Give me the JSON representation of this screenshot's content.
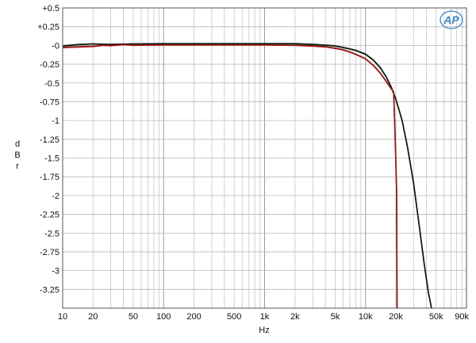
{
  "chart_data": {
    "type": "line",
    "title": "",
    "xlabel": "Hz",
    "ylabel": "dBr",
    "x_scale": "log",
    "xlim": [
      10,
      100000
    ],
    "ylim": [
      -3.5,
      0.5
    ],
    "grid": true,
    "logo": "AP",
    "x_ticks": [
      {
        "value": 10,
        "label": "10"
      },
      {
        "value": 20,
        "label": "20"
      },
      {
        "value": 50,
        "label": "50"
      },
      {
        "value": 100,
        "label": "100"
      },
      {
        "value": 200,
        "label": "200"
      },
      {
        "value": 500,
        "label": "500"
      },
      {
        "value": 1000,
        "label": "1k"
      },
      {
        "value": 2000,
        "label": "2k"
      },
      {
        "value": 5000,
        "label": "5k"
      },
      {
        "value": 10000,
        "label": "10k"
      },
      {
        "value": 20000,
        "label": "20k"
      },
      {
        "value": 50000,
        "label": "50k"
      },
      {
        "value": 90000,
        "label": "90k"
      }
    ],
    "y_ticks": [
      {
        "value": 0.5,
        "label": "+0.5"
      },
      {
        "value": 0.25,
        "label": "+0.25"
      },
      {
        "value": 0,
        "label": "-0"
      },
      {
        "value": -0.25,
        "label": "-0.25"
      },
      {
        "value": -0.5,
        "label": "-0.5"
      },
      {
        "value": -0.75,
        "label": "-0.75"
      },
      {
        "value": -1,
        "label": "-1"
      },
      {
        "value": -1.25,
        "label": "-1.25"
      },
      {
        "value": -1.5,
        "label": "-1.5"
      },
      {
        "value": -1.75,
        "label": "-1.75"
      },
      {
        "value": -2,
        "label": "-2"
      },
      {
        "value": -2.25,
        "label": "-2.25"
      },
      {
        "value": -2.5,
        "label": "-2.5"
      },
      {
        "value": -2.75,
        "label": "-2.75"
      },
      {
        "value": -3,
        "label": "-3"
      },
      {
        "value": -3.25,
        "label": "-3.25"
      }
    ],
    "series": [
      {
        "color": "#1a8a2a",
        "points": [
          [
            10,
            -0.01
          ],
          [
            15,
            0.01
          ],
          [
            20,
            0.02
          ],
          [
            30,
            0.01
          ],
          [
            50,
            0.02
          ],
          [
            100,
            0.02
          ],
          [
            200,
            0.02
          ],
          [
            500,
            0.02
          ],
          [
            1000,
            0.02
          ],
          [
            2000,
            0.02
          ],
          [
            3000,
            0.01
          ],
          [
            4000,
            0.0
          ],
          [
            5000,
            -0.01
          ],
          [
            6000,
            -0.03
          ],
          [
            7000,
            -0.05
          ],
          [
            8000,
            -0.07
          ],
          [
            10000,
            -0.12
          ],
          [
            12000,
            -0.2
          ],
          [
            14000,
            -0.3
          ],
          [
            16000,
            -0.42
          ],
          [
            18000,
            -0.56
          ],
          [
            20000,
            -0.72
          ],
          [
            23000,
            -1.0
          ],
          [
            26000,
            -1.35
          ],
          [
            30000,
            -1.85
          ],
          [
            34000,
            -2.4
          ],
          [
            38000,
            -2.9
          ],
          [
            42000,
            -3.3
          ],
          [
            45000,
            -3.5
          ]
        ]
      },
      {
        "color": "#111111",
        "points": [
          [
            10,
            -0.005
          ],
          [
            15,
            0.015
          ],
          [
            20,
            0.02
          ],
          [
            30,
            0.015
          ],
          [
            50,
            0.02
          ],
          [
            100,
            0.025
          ],
          [
            200,
            0.025
          ],
          [
            500,
            0.025
          ],
          [
            1000,
            0.025
          ],
          [
            2000,
            0.025
          ],
          [
            3000,
            0.015
          ],
          [
            4000,
            0.005
          ],
          [
            5000,
            -0.005
          ],
          [
            6000,
            -0.025
          ],
          [
            7000,
            -0.045
          ],
          [
            8000,
            -0.065
          ],
          [
            10000,
            -0.115
          ],
          [
            12000,
            -0.195
          ],
          [
            14000,
            -0.295
          ],
          [
            16000,
            -0.415
          ],
          [
            18000,
            -0.555
          ],
          [
            20000,
            -0.715
          ],
          [
            23000,
            -0.995
          ],
          [
            26000,
            -1.345
          ],
          [
            30000,
            -1.845
          ],
          [
            34000,
            -2.395
          ],
          [
            38000,
            -2.895
          ],
          [
            42000,
            -3.295
          ],
          [
            45100,
            -3.5
          ]
        ]
      },
      {
        "color": "#e0102a",
        "points": [
          [
            10,
            -0.03
          ],
          [
            15,
            -0.02
          ],
          [
            20,
            -0.015
          ],
          [
            25,
            0.0
          ],
          [
            30,
            -0.005
          ],
          [
            40,
            0.01
          ],
          [
            50,
            0.0
          ],
          [
            100,
            0.005
          ],
          [
            200,
            0.005
          ],
          [
            500,
            0.005
          ],
          [
            1000,
            0.005
          ],
          [
            2000,
            0.0
          ],
          [
            3000,
            -0.01
          ],
          [
            4000,
            -0.02
          ],
          [
            5000,
            -0.04
          ],
          [
            6000,
            -0.06
          ],
          [
            7000,
            -0.09
          ],
          [
            8000,
            -0.12
          ],
          [
            10000,
            -0.18
          ],
          [
            12000,
            -0.27
          ],
          [
            14000,
            -0.37
          ],
          [
            16000,
            -0.48
          ],
          [
            18000,
            -0.58
          ],
          [
            19000,
            -0.62
          ],
          [
            19600,
            -1.2
          ],
          [
            20300,
            -1.95
          ],
          [
            20500,
            -3.5
          ]
        ]
      },
      {
        "color": "#8a1a1a",
        "points": [
          [
            10,
            -0.025
          ],
          [
            15,
            -0.015
          ],
          [
            20,
            -0.01
          ],
          [
            25,
            0.005
          ],
          [
            30,
            0.0
          ],
          [
            40,
            0.012
          ],
          [
            50,
            0.004
          ],
          [
            100,
            0.008
          ],
          [
            200,
            0.008
          ],
          [
            500,
            0.008
          ],
          [
            1000,
            0.008
          ],
          [
            2000,
            0.004
          ],
          [
            3000,
            -0.006
          ],
          [
            4000,
            -0.016
          ],
          [
            5000,
            -0.036
          ],
          [
            6000,
            -0.056
          ],
          [
            7000,
            -0.086
          ],
          [
            8000,
            -0.116
          ],
          [
            10000,
            -0.176
          ],
          [
            12000,
            -0.266
          ],
          [
            14000,
            -0.366
          ],
          [
            16000,
            -0.476
          ],
          [
            18000,
            -0.576
          ],
          [
            19000,
            -0.616
          ],
          [
            19650,
            -1.2
          ],
          [
            20350,
            -1.95
          ],
          [
            20550,
            -3.5
          ]
        ]
      }
    ]
  }
}
